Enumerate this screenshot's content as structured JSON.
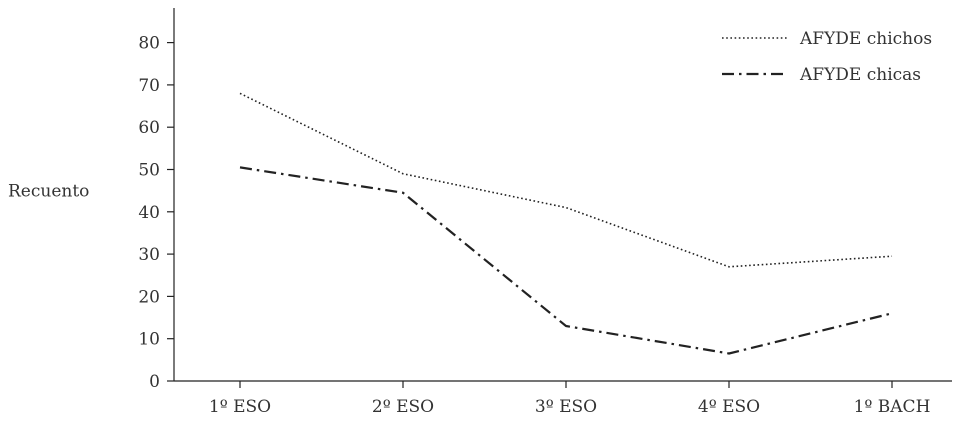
{
  "chart_data": {
    "type": "line",
    "title": "",
    "xlabel": "",
    "ylabel": "Recuento",
    "categories": [
      "1º ESO",
      "2º ESO",
      "3º ESO",
      "4º ESO",
      "1º BACH"
    ],
    "yticks": [
      0,
      10,
      20,
      30,
      40,
      50,
      60,
      70,
      80
    ],
    "ylim": [
      0,
      86
    ],
    "grid": false,
    "legend_position": "top-right",
    "series": [
      {
        "name": "AFYDE chichos",
        "style": "dotted",
        "color": "#222222",
        "values": [
          68,
          49,
          41,
          27,
          29.5
        ]
      },
      {
        "name": "AFYDE chicas",
        "style": "dash-dot",
        "color": "#222222",
        "values": [
          50.5,
          44.5,
          13,
          6.5,
          16
        ]
      }
    ]
  }
}
